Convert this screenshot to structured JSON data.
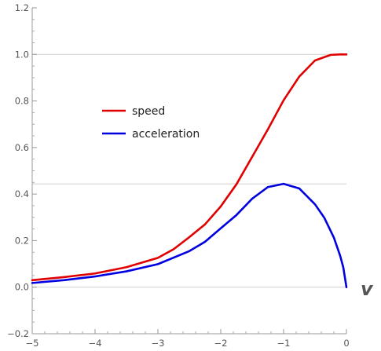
{
  "chart_data": {
    "type": "line",
    "xlabel": "v",
    "ylabel": "",
    "xlim": [
      -5,
      0
    ],
    "ylim": [
      -0.2,
      1.2
    ],
    "x_ticks": [
      "−5",
      "−4",
      "−3",
      "−2",
      "−1",
      "0"
    ],
    "y_ticks": [
      "−0.2",
      "0.0",
      "0.2",
      "0.4",
      "0.6",
      "0.8",
      "1.0",
      "1.2"
    ],
    "reference_lines": [
      0.0,
      0.444,
      1.0
    ],
    "legend_position": "upper-left-center",
    "series": [
      {
        "name": "speed",
        "color": "#e00000",
        "x": [
          -5.0,
          -4.5,
          -4.0,
          -3.5,
          -3.0,
          -2.75,
          -2.5,
          -2.25,
          -2.0,
          -1.75,
          -1.5,
          -1.25,
          -1.0,
          -0.75,
          -0.5,
          -0.25,
          -0.1,
          0.0
        ],
        "y": [
          0.03,
          0.043,
          0.059,
          0.086,
          0.126,
          0.163,
          0.215,
          0.27,
          0.347,
          0.442,
          0.56,
          0.678,
          0.803,
          0.905,
          0.974,
          0.998,
          1.0,
          1.0
        ]
      },
      {
        "name": "acceleration",
        "color": "#0000e0",
        "x": [
          -5.0,
          -4.5,
          -4.0,
          -3.5,
          -3.0,
          -2.5,
          -2.25,
          -2.0,
          -1.75,
          -1.5,
          -1.25,
          -1.0,
          -0.75,
          -0.5,
          -0.35,
          -0.2,
          -0.1,
          -0.05,
          0.0
        ],
        "y": [
          0.018,
          0.03,
          0.046,
          0.068,
          0.099,
          0.155,
          0.195,
          0.253,
          0.31,
          0.38,
          0.43,
          0.444,
          0.424,
          0.356,
          0.297,
          0.213,
          0.135,
          0.085,
          0.0
        ]
      }
    ]
  }
}
